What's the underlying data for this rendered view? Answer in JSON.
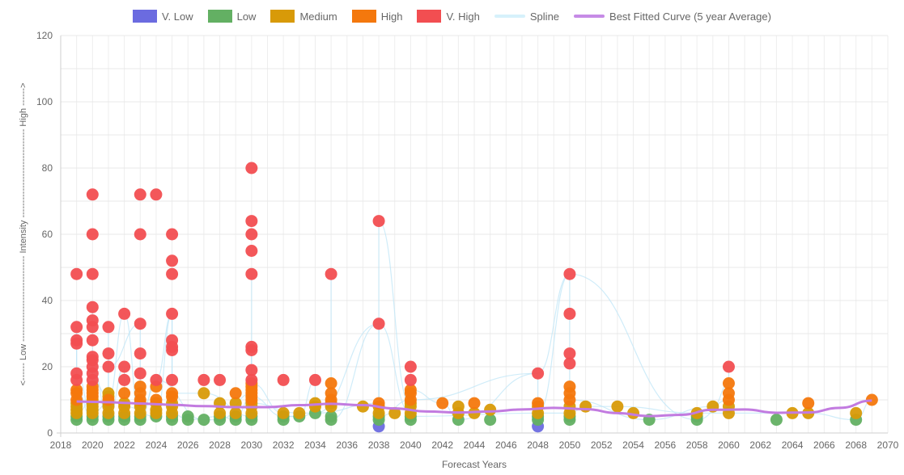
{
  "legend": [
    {
      "label": "V. Low",
      "color": "#6b6be0",
      "kind": "box"
    },
    {
      "label": "Low",
      "color": "#63b063",
      "kind": "box"
    },
    {
      "label": "Medium",
      "color": "#d89a08",
      "kind": "box"
    },
    {
      "label": "High",
      "color": "#f4780d",
      "kind": "box"
    },
    {
      "label": "V. High",
      "color": "#f24e51",
      "kind": "box"
    },
    {
      "label": "Spline",
      "color": "#d6f1fb",
      "kind": "line"
    },
    {
      "label": "Best Fitted Curve (5 year Average)",
      "color": "#c68be6",
      "kind": "line"
    }
  ],
  "chart_data": {
    "type": "scatter",
    "xlabel": "Forecast Years",
    "ylabel": "<------ Low ----------------------------- Intensity ------------------------------ High ------>",
    "xlim": [
      2018,
      2070
    ],
    "ylim": [
      0,
      120
    ],
    "x_ticks": [
      2018,
      2020,
      2022,
      2024,
      2026,
      2028,
      2030,
      2032,
      2034,
      2036,
      2038,
      2040,
      2042,
      2044,
      2046,
      2048,
      2050,
      2052,
      2054,
      2056,
      2058,
      2060,
      2062,
      2064,
      2066,
      2068,
      2070
    ],
    "y_ticks": [
      0,
      20,
      40,
      60,
      80,
      100,
      120
    ],
    "grid": true,
    "legend_position": "top",
    "series": [
      {
        "name": "V. Low",
        "color": "#6b6be0",
        "points": [
          [
            2038,
            2
          ],
          [
            2048,
            2
          ]
        ]
      },
      {
        "name": "Low",
        "color": "#63b063",
        "points": [
          [
            2019,
            4
          ],
          [
            2019,
            5
          ],
          [
            2020,
            4
          ],
          [
            2020,
            5
          ],
          [
            2021,
            4
          ],
          [
            2021,
            5
          ],
          [
            2022,
            4
          ],
          [
            2022,
            5
          ],
          [
            2023,
            4
          ],
          [
            2023,
            5
          ],
          [
            2024,
            5
          ],
          [
            2025,
            4
          ],
          [
            2025,
            5
          ],
          [
            2026,
            4
          ],
          [
            2026,
            5
          ],
          [
            2027,
            4
          ],
          [
            2028,
            4
          ],
          [
            2028,
            5
          ],
          [
            2029,
            4
          ],
          [
            2029,
            5
          ],
          [
            2030,
            4
          ],
          [
            2030,
            5
          ],
          [
            2032,
            4
          ],
          [
            2032,
            5
          ],
          [
            2033,
            5
          ],
          [
            2034,
            6
          ],
          [
            2035,
            4
          ],
          [
            2035,
            5
          ],
          [
            2038,
            4
          ],
          [
            2038,
            5
          ],
          [
            2040,
            4
          ],
          [
            2040,
            5
          ],
          [
            2043,
            4
          ],
          [
            2045,
            4
          ],
          [
            2048,
            4
          ],
          [
            2048,
            5
          ],
          [
            2050,
            4
          ],
          [
            2050,
            5
          ],
          [
            2055,
            4
          ],
          [
            2058,
            4
          ],
          [
            2058,
            5
          ],
          [
            2063,
            4
          ],
          [
            2068,
            4
          ]
        ]
      },
      {
        "name": "Medium",
        "color": "#d89a08",
        "points": [
          [
            2019,
            6
          ],
          [
            2019,
            7
          ],
          [
            2019,
            8
          ],
          [
            2019,
            9
          ],
          [
            2020,
            6
          ],
          [
            2020,
            7
          ],
          [
            2020,
            8
          ],
          [
            2020,
            9
          ],
          [
            2020,
            10
          ],
          [
            2021,
            6
          ],
          [
            2021,
            8
          ],
          [
            2021,
            9
          ],
          [
            2021,
            11
          ],
          [
            2021,
            12
          ],
          [
            2022,
            6
          ],
          [
            2022,
            8
          ],
          [
            2022,
            9
          ],
          [
            2023,
            6
          ],
          [
            2023,
            8
          ],
          [
            2023,
            9
          ],
          [
            2024,
            6
          ],
          [
            2024,
            7
          ],
          [
            2024,
            9
          ],
          [
            2025,
            6
          ],
          [
            2025,
            8
          ],
          [
            2025,
            9
          ],
          [
            2027,
            12
          ],
          [
            2028,
            6
          ],
          [
            2028,
            9
          ],
          [
            2029,
            6
          ],
          [
            2029,
            9
          ],
          [
            2030,
            6
          ],
          [
            2030,
            8
          ],
          [
            2030,
            9
          ],
          [
            2032,
            6
          ],
          [
            2033,
            6
          ],
          [
            2034,
            8
          ],
          [
            2034,
            9
          ],
          [
            2035,
            8
          ],
          [
            2035,
            9
          ],
          [
            2037,
            8
          ],
          [
            2038,
            6
          ],
          [
            2038,
            8
          ],
          [
            2039,
            6
          ],
          [
            2040,
            6
          ],
          [
            2040,
            8
          ],
          [
            2040,
            9
          ],
          [
            2043,
            6
          ],
          [
            2043,
            8
          ],
          [
            2044,
            6
          ],
          [
            2045,
            7
          ],
          [
            2048,
            6
          ],
          [
            2048,
            8
          ],
          [
            2050,
            6
          ],
          [
            2050,
            8
          ],
          [
            2051,
            8
          ],
          [
            2053,
            8
          ],
          [
            2054,
            6
          ],
          [
            2058,
            6
          ],
          [
            2059,
            8
          ],
          [
            2060,
            6
          ],
          [
            2060,
            8
          ],
          [
            2064,
            6
          ],
          [
            2065,
            6
          ],
          [
            2068,
            6
          ]
        ]
      },
      {
        "name": "High",
        "color": "#f4780d",
        "points": [
          [
            2019,
            10
          ],
          [
            2019,
            12
          ],
          [
            2019,
            13
          ],
          [
            2020,
            11
          ],
          [
            2020,
            12
          ],
          [
            2020,
            13
          ],
          [
            2020,
            14
          ],
          [
            2021,
            10
          ],
          [
            2022,
            12
          ],
          [
            2023,
            10
          ],
          [
            2023,
            12
          ],
          [
            2023,
            14
          ],
          [
            2024,
            10
          ],
          [
            2024,
            14
          ],
          [
            2025,
            11
          ],
          [
            2025,
            12
          ],
          [
            2029,
            12
          ],
          [
            2030,
            10
          ],
          [
            2030,
            11
          ],
          [
            2030,
            12
          ],
          [
            2030,
            13
          ],
          [
            2030,
            14
          ],
          [
            2030,
            15
          ],
          [
            2035,
            10
          ],
          [
            2035,
            12
          ],
          [
            2035,
            15
          ],
          [
            2038,
            9
          ],
          [
            2040,
            10
          ],
          [
            2040,
            12
          ],
          [
            2040,
            13
          ],
          [
            2042,
            9
          ],
          [
            2044,
            9
          ],
          [
            2048,
            9
          ],
          [
            2050,
            10
          ],
          [
            2050,
            12
          ],
          [
            2050,
            14
          ],
          [
            2060,
            10
          ],
          [
            2060,
            12
          ],
          [
            2060,
            15
          ],
          [
            2065,
            9
          ],
          [
            2069,
            10
          ]
        ]
      },
      {
        "name": "V. High",
        "color": "#f24e51",
        "points": [
          [
            2019,
            16
          ],
          [
            2019,
            18
          ],
          [
            2019,
            27
          ],
          [
            2019,
            28
          ],
          [
            2019,
            32
          ],
          [
            2019,
            48
          ],
          [
            2020,
            16
          ],
          [
            2020,
            18
          ],
          [
            2020,
            20
          ],
          [
            2020,
            22
          ],
          [
            2020,
            23
          ],
          [
            2020,
            28
          ],
          [
            2020,
            32
          ],
          [
            2020,
            34
          ],
          [
            2020,
            38
          ],
          [
            2020,
            48
          ],
          [
            2020,
            60
          ],
          [
            2020,
            72
          ],
          [
            2021,
            20
          ],
          [
            2021,
            24
          ],
          [
            2021,
            32
          ],
          [
            2022,
            16
          ],
          [
            2022,
            20
          ],
          [
            2022,
            36
          ],
          [
            2023,
            18
          ],
          [
            2023,
            24
          ],
          [
            2023,
            33
          ],
          [
            2023,
            60
          ],
          [
            2023,
            72
          ],
          [
            2024,
            16
          ],
          [
            2024,
            72
          ],
          [
            2025,
            16
          ],
          [
            2025,
            25
          ],
          [
            2025,
            26
          ],
          [
            2025,
            28
          ],
          [
            2025,
            36
          ],
          [
            2025,
            48
          ],
          [
            2025,
            52
          ],
          [
            2025,
            60
          ],
          [
            2027,
            16
          ],
          [
            2028,
            16
          ],
          [
            2030,
            16
          ],
          [
            2030,
            19
          ],
          [
            2030,
            25
          ],
          [
            2030,
            26
          ],
          [
            2030,
            48
          ],
          [
            2030,
            55
          ],
          [
            2030,
            60
          ],
          [
            2030,
            64
          ],
          [
            2030,
            80
          ],
          [
            2032,
            16
          ],
          [
            2034,
            16
          ],
          [
            2035,
            48
          ],
          [
            2038,
            33
          ],
          [
            2038,
            64
          ],
          [
            2040,
            16
          ],
          [
            2040,
            20
          ],
          [
            2048,
            18
          ],
          [
            2050,
            21
          ],
          [
            2050,
            24
          ],
          [
            2050,
            36
          ],
          [
            2050,
            48
          ],
          [
            2060,
            20
          ]
        ]
      }
    ],
    "fitted_curve": {
      "name": "Best Fitted Curve (5 year Average)",
      "points": [
        [
          2019,
          9.5
        ],
        [
          2020,
          9.4
        ],
        [
          2021,
          9.3
        ],
        [
          2022,
          9.1
        ],
        [
          2023,
          8.9
        ],
        [
          2024,
          8.7
        ],
        [
          2025,
          8.5
        ],
        [
          2027,
          8.1
        ],
        [
          2029,
          7.8
        ],
        [
          2031,
          7.8
        ],
        [
          2033,
          8.4
        ],
        [
          2035,
          8.8
        ],
        [
          2037,
          8.4
        ],
        [
          2039,
          7.4
        ],
        [
          2041,
          6.5
        ],
        [
          2043,
          6.2
        ],
        [
          2045,
          6.5
        ],
        [
          2047,
          7.1
        ],
        [
          2049,
          7.6
        ],
        [
          2051,
          7.2
        ],
        [
          2053,
          6.0
        ],
        [
          2055,
          5.1
        ],
        [
          2057,
          5.5
        ],
        [
          2059,
          7.0
        ],
        [
          2061,
          7.1
        ],
        [
          2063,
          6.1
        ],
        [
          2065,
          6.2
        ],
        [
          2067,
          7.6
        ],
        [
          2069,
          9.8
        ]
      ]
    }
  }
}
